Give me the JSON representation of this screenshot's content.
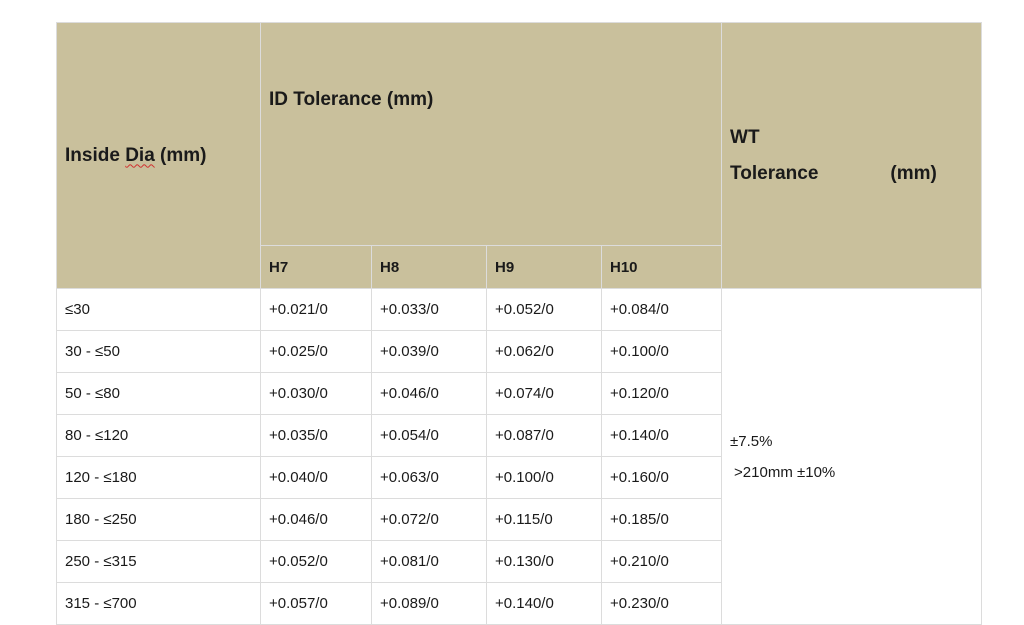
{
  "header": {
    "inside_dia_word": "Inside",
    "inside_dia_rest_a": "Dia",
    "inside_dia_rest_b": " (mm)",
    "id_tolerance": "ID Tolerance (mm)",
    "wt_line1": "WT",
    "wt_line2": "Tolerance",
    "wt_unit": "(mm)",
    "grades": [
      "H7",
      "H8",
      "H9",
      "H10"
    ]
  },
  "rows": [
    {
      "dia": "≤30",
      "h7": "+0.021/0",
      "h8": "+0.033/0",
      "h9": "+0.052/0",
      "h10": "+0.084/0"
    },
    {
      "dia": "30 - ≤50",
      "h7": "+0.025/0",
      "h8": "+0.039/0",
      "h9": "+0.062/0",
      "h10": "+0.100/0"
    },
    {
      "dia": "50 - ≤80",
      "h7": "+0.030/0",
      "h8": "+0.046/0",
      "h9": "+0.074/0",
      "h10": "+0.120/0"
    },
    {
      "dia": "80 - ≤120",
      "h7": "+0.035/0",
      "h8": "+0.054/0",
      "h9": "+0.087/0",
      "h10": "+0.140/0"
    },
    {
      "dia": "120 - ≤180",
      "h7": "+0.040/0",
      "h8": "+0.063/0",
      "h9": "+0.100/0",
      "h10": "+0.160/0"
    },
    {
      "dia": "180 - ≤250",
      "h7": "+0.046/0",
      "h8": "+0.072/0",
      "h9": "+0.115/0",
      "h10": "+0.185/0"
    },
    {
      "dia": "250 - ≤315",
      "h7": "+0.052/0",
      "h8": "+0.081/0",
      "h9": "+0.130/0",
      "h10": "+0.210/0"
    },
    {
      "dia": "315 - ≤700",
      "h7": "+0.057/0",
      "h8": "+0.089/0",
      "h9": "+0.140/0",
      "h10": "+0.230/0"
    }
  ],
  "wt": {
    "value1": "±7.5%",
    "value2": ">210mm ±10%"
  },
  "colors": {
    "header_bg": "#c9c09c",
    "border": "#dcdcdc"
  }
}
